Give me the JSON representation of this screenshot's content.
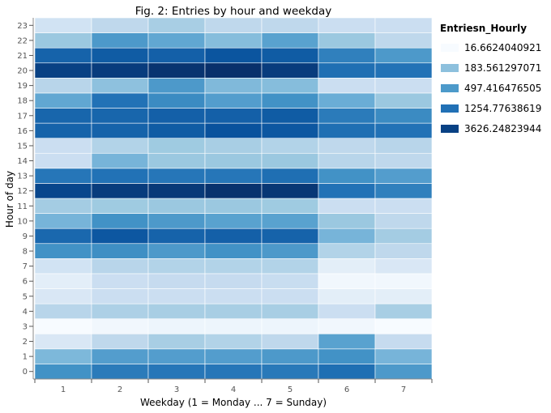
{
  "chart_data": {
    "type": "heatmap",
    "title": "Fig. 2: Entries by hour and weekday",
    "xlabel": "Weekday (1 = Monday ... 7 = Sunday)",
    "ylabel": "Hour of day",
    "x_categories": [
      "1",
      "2",
      "3",
      "4",
      "5",
      "6",
      "7"
    ],
    "y_categories": [
      "0",
      "1",
      "2",
      "3",
      "4",
      "5",
      "6",
      "7",
      "8",
      "9",
      "10",
      "11",
      "12",
      "13",
      "14",
      "15",
      "16",
      "17",
      "18",
      "19",
      "20",
      "21",
      "22",
      "23"
    ],
    "x_axis_name": "weekday",
    "y_axis_name": "hour",
    "value_name": "Entriesn_Hourly",
    "values": [
      [
        600,
        1000,
        1100,
        1100,
        1050,
        1300,
        500
      ],
      [
        230,
        450,
        450,
        450,
        500,
        600,
        250
      ],
      [
        40,
        80,
        120,
        100,
        80,
        400,
        70
      ],
      [
        15,
        20,
        22,
        22,
        22,
        20,
        15
      ],
      [
        90,
        110,
        120,
        120,
        120,
        60,
        120
      ],
      [
        40,
        60,
        60,
        60,
        60,
        30,
        30
      ],
      [
        30,
        60,
        70,
        70,
        65,
        20,
        20
      ],
      [
        50,
        90,
        100,
        100,
        100,
        30,
        40
      ],
      [
        600,
        650,
        500,
        600,
        500,
        100,
        80
      ],
      [
        1500,
        2200,
        1700,
        1800,
        1700,
        250,
        130
      ],
      [
        250,
        600,
        500,
        400,
        400,
        150,
        80
      ],
      [
        130,
        140,
        150,
        150,
        140,
        60,
        60
      ],
      [
        3200,
        4000,
        4300,
        5000,
        4500,
        1200,
        900
      ],
      [
        1100,
        1200,
        1100,
        1100,
        1300,
        600,
        450
      ],
      [
        60,
        250,
        150,
        150,
        150,
        90,
        80
      ],
      [
        60,
        100,
        140,
        120,
        100,
        80,
        90
      ],
      [
        1700,
        1700,
        2000,
        2500,
        2200,
        1300,
        1200
      ],
      [
        1600,
        1600,
        1800,
        1800,
        2000,
        1000,
        700
      ],
      [
        350,
        1200,
        700,
        450,
        600,
        300,
        150
      ],
      [
        90,
        180,
        500,
        220,
        200,
        60,
        60
      ],
      [
        3600,
        4000,
        4800,
        5200,
        4000,
        1300,
        1200
      ],
      [
        1700,
        2000,
        1800,
        2300,
        2000,
        900,
        500
      ],
      [
        150,
        500,
        350,
        200,
        400,
        150,
        80
      ],
      [
        50,
        80,
        120,
        80,
        80,
        60,
        60
      ]
    ],
    "color_scale": {
      "type": "log",
      "colors": [
        "#f7fbff",
        "#deebf7",
        "#c6dbef",
        "#9ecae1",
        "#6baed6",
        "#4292c6",
        "#2171b5",
        "#08519c",
        "#08306b"
      ]
    },
    "legend": {
      "title": "Entriesn_Hourly",
      "position": "right",
      "entries": [
        {
          "label": "16.6624040921",
          "value": 16.6624040921
        },
        {
          "label": "183.561297071",
          "value": 183.561297071
        },
        {
          "label": "497.416476505",
          "value": 497.416476505
        },
        {
          "label": "1254.77638619",
          "value": 1254.77638619
        },
        {
          "label": "3626.24823944",
          "value": 3626.24823944
        }
      ]
    },
    "grid": true
  }
}
